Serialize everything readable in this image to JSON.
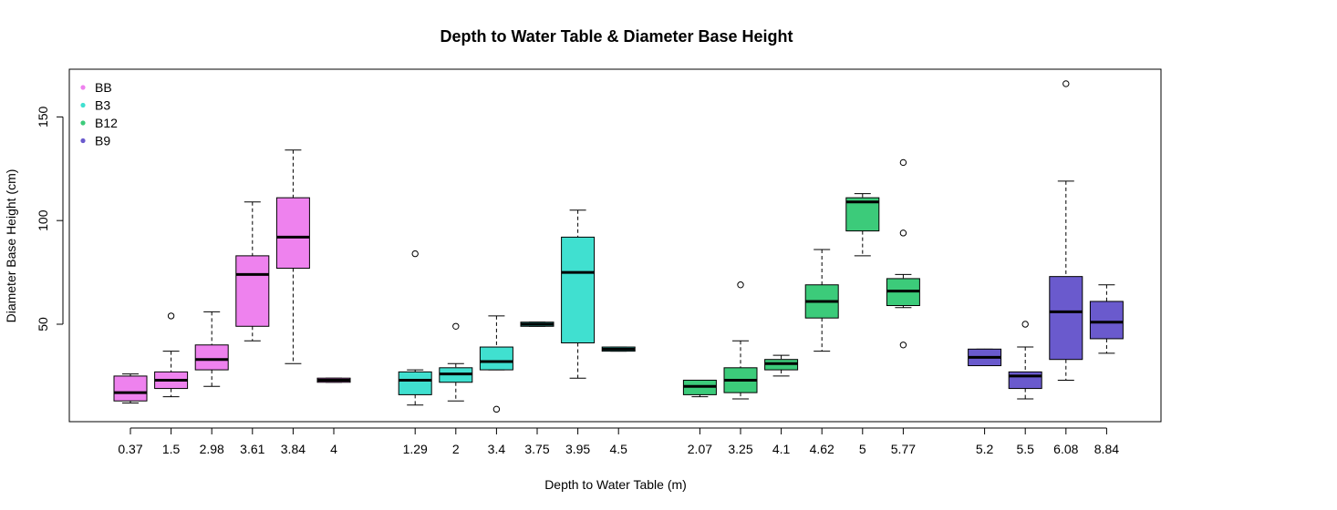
{
  "chart_data": {
    "type": "boxplot",
    "title": "Depth to Water Table & Diameter Base Height",
    "xlabel": "Depth to Water Table (m)",
    "ylabel": "Diameter Base Height (cm)",
    "ylim": [
      3,
      173
    ],
    "yticks": [
      50,
      100,
      150
    ],
    "grid": false,
    "legend_position": "top-left",
    "series": [
      {
        "name": "BB",
        "color": "#EE82EE",
        "boxes": [
          {
            "label": "0.37",
            "min": 12,
            "q1": 13,
            "median": 17,
            "q3": 25,
            "max": 26,
            "outliers": []
          },
          {
            "label": "1.5",
            "min": 15,
            "q1": 19,
            "median": 23,
            "q3": 27,
            "max": 37,
            "outliers": [
              54
            ]
          },
          {
            "label": "2.98",
            "min": 20,
            "q1": 28,
            "median": 33,
            "q3": 40,
            "max": 56,
            "outliers": []
          },
          {
            "label": "3.61",
            "min": 42,
            "q1": 49,
            "median": 74,
            "q3": 83,
            "max": 109,
            "outliers": []
          },
          {
            "label": "3.84",
            "min": 31,
            "q1": 77,
            "median": 92,
            "q3": 111,
            "max": 134,
            "outliers": []
          },
          {
            "label": "4",
            "min": 22,
            "q1": 22,
            "median": 23,
            "q3": 24,
            "max": 24,
            "outliers": []
          }
        ]
      },
      {
        "name": "B3",
        "color": "#40E0D0",
        "boxes": [
          {
            "label": "1.29",
            "min": 11,
            "q1": 16,
            "median": 23,
            "q3": 27,
            "max": 28,
            "outliers": [
              84
            ]
          },
          {
            "label": "2",
            "min": 13,
            "q1": 22,
            "median": 26,
            "q3": 29,
            "max": 31,
            "outliers": [
              49
            ]
          },
          {
            "label": "3.4",
            "min": 28,
            "q1": 28,
            "median": 32,
            "q3": 39,
            "max": 54,
            "outliers": [
              9
            ]
          },
          {
            "label": "3.75",
            "min": 49,
            "q1": 49,
            "median": 50,
            "q3": 51,
            "max": 51,
            "outliers": []
          },
          {
            "label": "3.95",
            "min": 24,
            "q1": 41,
            "median": 75,
            "q3": 92,
            "max": 105,
            "outliers": []
          },
          {
            "label": "4.5",
            "min": 37,
            "q1": 37,
            "median": 38,
            "q3": 39,
            "max": 39,
            "outliers": []
          }
        ]
      },
      {
        "name": "B12",
        "color": "#3CCB7A",
        "boxes": [
          {
            "label": "2.07",
            "min": 15,
            "q1": 16,
            "median": 20,
            "q3": 23,
            "max": 23,
            "outliers": []
          },
          {
            "label": "3.25",
            "min": 14,
            "q1": 17,
            "median": 23,
            "q3": 29,
            "max": 42,
            "outliers": [
              69
            ]
          },
          {
            "label": "4.1",
            "min": 25,
            "q1": 28,
            "median": 31,
            "q3": 33,
            "max": 35,
            "outliers": []
          },
          {
            "label": "4.62",
            "min": 37,
            "q1": 53,
            "median": 61,
            "q3": 69,
            "max": 86,
            "outliers": []
          },
          {
            "label": "5",
            "min": 83,
            "q1": 95,
            "median": 109,
            "q3": 111,
            "max": 113,
            "outliers": []
          },
          {
            "label": "5.77",
            "min": 58,
            "q1": 59,
            "median": 66,
            "q3": 72,
            "max": 74,
            "outliers": [
              128,
              94,
              40
            ]
          }
        ]
      },
      {
        "name": "B9",
        "color": "#6A5ACD",
        "boxes": [
          {
            "label": "5.2",
            "min": 30,
            "q1": 30,
            "median": 34,
            "q3": 38,
            "max": 38,
            "outliers": []
          },
          {
            "label": "5.5",
            "min": 14,
            "q1": 19,
            "median": 25,
            "q3": 27,
            "max": 39,
            "outliers": [
              50
            ]
          },
          {
            "label": "6.08",
            "min": 23,
            "q1": 33,
            "median": 56,
            "q3": 73,
            "max": 119,
            "outliers": [
              166
            ]
          },
          {
            "label": "8.84",
            "min": 36,
            "q1": 43,
            "median": 51,
            "q3": 61,
            "max": 69,
            "outliers": []
          }
        ]
      }
    ]
  }
}
